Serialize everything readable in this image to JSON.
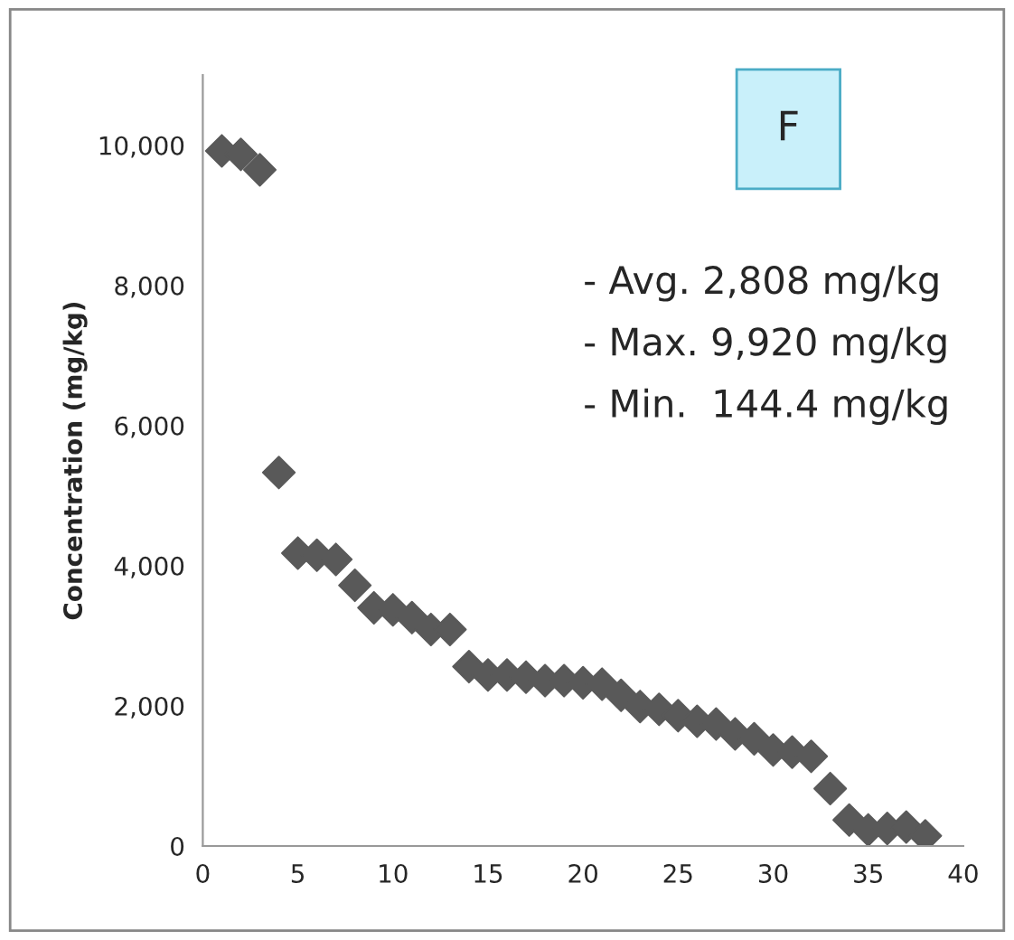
{
  "chart_data": {
    "type": "scatter",
    "title": "F",
    "ylabel": "Concentration (mg/kg)",
    "x": [
      1,
      2,
      3,
      4,
      5,
      6,
      7,
      8,
      9,
      10,
      11,
      12,
      13,
      14,
      15,
      16,
      17,
      18,
      19,
      20,
      21,
      22,
      23,
      24,
      25,
      26,
      27,
      28,
      29,
      30,
      31,
      32,
      33,
      34,
      35,
      36,
      37,
      38
    ],
    "series": [
      {
        "color": "#595959",
        "values": [
          9920,
          9870,
          9650,
          5330,
          4180,
          4150,
          4090,
          3720,
          3400,
          3370,
          3260,
          3090,
          3090,
          2560,
          2440,
          2440,
          2410,
          2360,
          2360,
          2330,
          2310,
          2150,
          1990,
          1950,
          1860,
          1780,
          1740,
          1600,
          1530,
          1370,
          1340,
          1280,
          820,
          370,
          230,
          250,
          270,
          144.4
        ]
      }
    ],
    "marker": "diamond",
    "grid": false,
    "xlim": [
      0,
      40
    ],
    "xticks": [
      0,
      5,
      10,
      15,
      20,
      25,
      30,
      35,
      40
    ],
    "ylim": [
      0,
      11000
    ],
    "yticks": [
      0,
      {
        "value": 2000,
        "label": "2,000"
      },
      {
        "value": 4000,
        "label": "4,000"
      },
      {
        "value": 6000,
        "label": "6,000"
      },
      {
        "value": 8000,
        "label": "8,000"
      },
      {
        "value": 10000,
        "label": "10,000"
      }
    ],
    "annotations": [
      "- Avg. 2,808 mg/kg",
      "- Max. 9,920 mg/kg",
      "- Min.  144.4 mg/kg"
    ]
  }
}
